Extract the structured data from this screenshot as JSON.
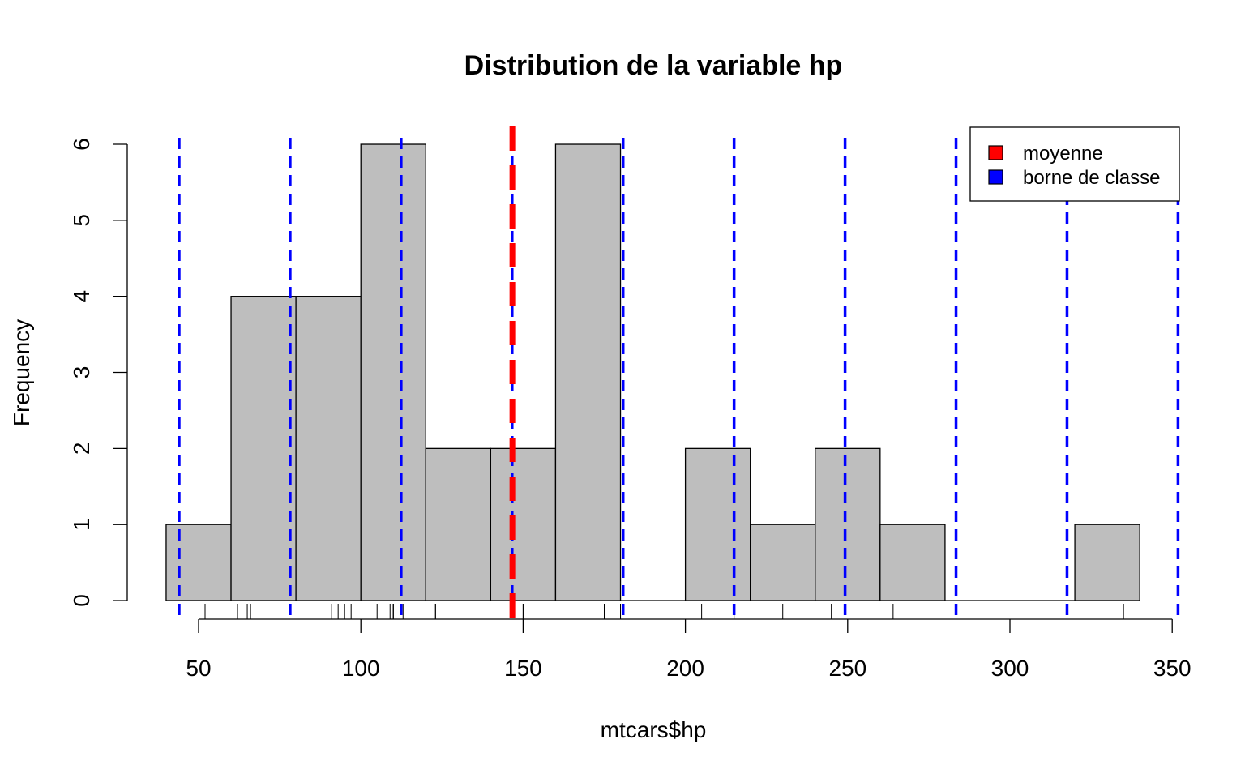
{
  "chart_data": {
    "type": "bar",
    "title": "Distribution de la variable hp",
    "xlabel": "mtcars$hp",
    "ylabel": "Frequency",
    "xlim": [
      40,
      352
    ],
    "ylim": [
      0,
      6
    ],
    "x_ticks": [
      50,
      100,
      150,
      200,
      250,
      300,
      350
    ],
    "y_ticks": [
      0,
      1,
      2,
      3,
      4,
      5,
      6
    ],
    "bin_edges": [
      40,
      60,
      80,
      100,
      120,
      140,
      160,
      180,
      200,
      220,
      240,
      260,
      280,
      300,
      320,
      340
    ],
    "counts": [
      1,
      4,
      4,
      6,
      2,
      2,
      6,
      0,
      2,
      1,
      2,
      1,
      0,
      0,
      1
    ],
    "bar_color": "#bebebe",
    "rug_values": [
      52,
      62,
      65,
      66,
      66,
      91,
      93,
      95,
      97,
      105,
      109,
      110,
      110,
      110,
      113,
      123,
      123,
      150,
      150,
      175,
      175,
      175,
      180,
      180,
      180,
      205,
      215,
      230,
      245,
      245,
      264,
      335
    ],
    "mean": {
      "value": 146.69,
      "color": "#ff0000"
    },
    "class_bounds": {
      "values": [
        44,
        78.2,
        112.4,
        146.6,
        180.8,
        215,
        249.2,
        283.4,
        317.6,
        351.8
      ],
      "color": "#0000ff"
    },
    "grid": false,
    "legend": {
      "position": "top-right",
      "items": [
        {
          "label": "moyenne",
          "color": "#ff0000"
        },
        {
          "label": "borne de classe",
          "color": "#0000ff"
        }
      ]
    }
  }
}
